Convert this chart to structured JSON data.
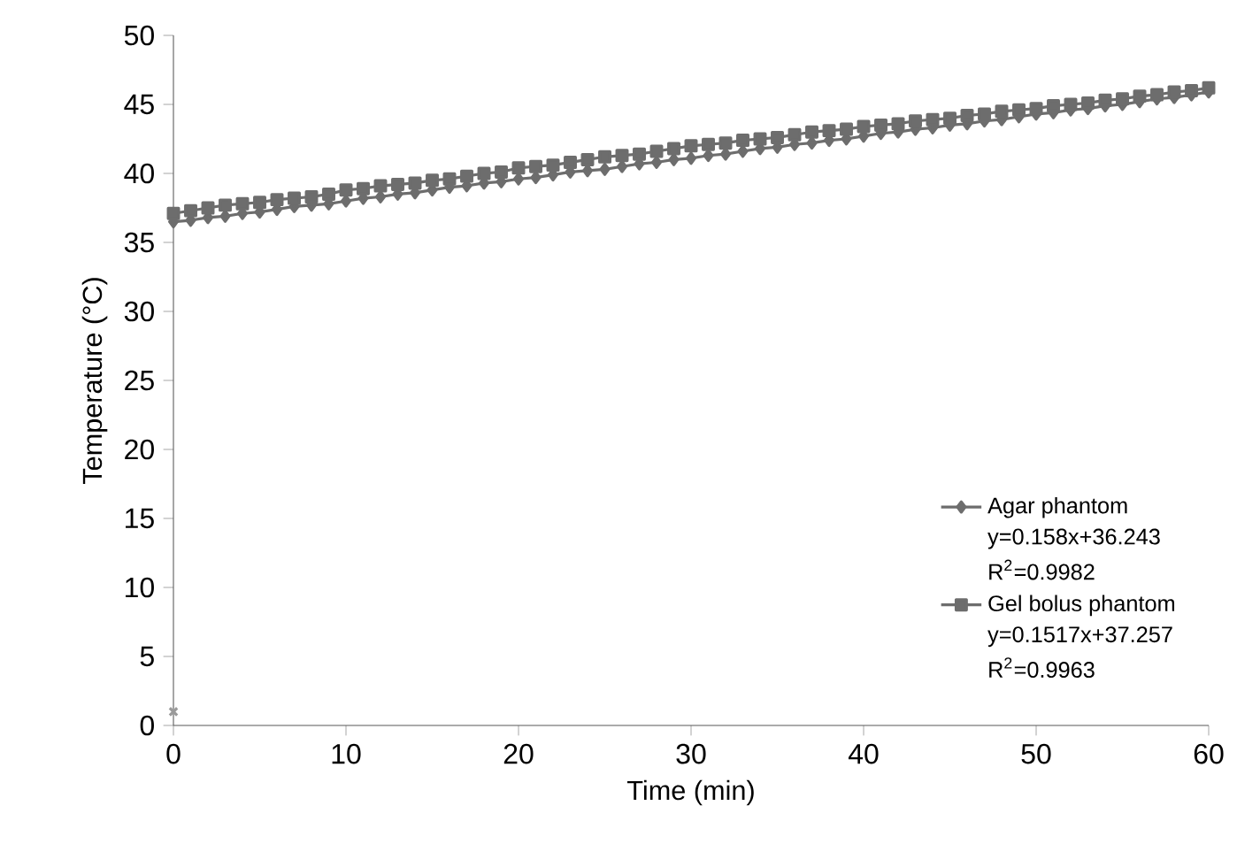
{
  "chart_data": {
    "type": "line",
    "xlabel": "Time (min)",
    "ylabel": "Temperature (°C)",
    "xlim": [
      0,
      60
    ],
    "xticks": [
      0,
      10,
      20,
      30,
      40,
      50,
      60
    ],
    "ylim": [
      0,
      50
    ],
    "yticks": [
      0,
      5,
      10,
      15,
      20,
      25,
      30,
      35,
      40,
      45,
      50
    ],
    "x": [
      0,
      1,
      2,
      3,
      4,
      5,
      6,
      7,
      8,
      9,
      10,
      11,
      12,
      13,
      14,
      15,
      16,
      17,
      18,
      19,
      20,
      21,
      22,
      23,
      24,
      25,
      26,
      27,
      28,
      29,
      30,
      31,
      32,
      33,
      34,
      35,
      36,
      37,
      38,
      39,
      40,
      41,
      42,
      43,
      44,
      45,
      46,
      47,
      48,
      49,
      50,
      51,
      52,
      53,
      54,
      55,
      56,
      57,
      58,
      59,
      60
    ],
    "series": [
      {
        "name": "Agar phantom",
        "color": "#6d6d6d",
        "marker": "diamond",
        "values": [
          36.5,
          36.6,
          36.8,
          36.9,
          37.1,
          37.2,
          37.4,
          37.6,
          37.7,
          37.8,
          38.0,
          38.2,
          38.3,
          38.5,
          38.6,
          38.8,
          39.0,
          39.1,
          39.3,
          39.4,
          39.6,
          39.7,
          39.9,
          40.1,
          40.2,
          40.3,
          40.5,
          40.7,
          40.8,
          41.0,
          41.1,
          41.3,
          41.4,
          41.6,
          41.8,
          41.9,
          42.1,
          42.2,
          42.4,
          42.5,
          42.7,
          42.9,
          43.0,
          43.2,
          43.3,
          43.5,
          43.6,
          43.8,
          43.9,
          44.1,
          44.3,
          44.4,
          44.6,
          44.7,
          44.9,
          45.0,
          45.2,
          45.4,
          45.5,
          45.7,
          45.9
        ]
      },
      {
        "name": "Gel bolus phantom",
        "color": "#6d6d6d",
        "marker": "square",
        "values": [
          37.1,
          37.3,
          37.5,
          37.7,
          37.8,
          37.9,
          38.1,
          38.2,
          38.3,
          38.5,
          38.8,
          38.9,
          39.1,
          39.2,
          39.3,
          39.5,
          39.6,
          39.8,
          40.0,
          40.1,
          40.4,
          40.5,
          40.6,
          40.8,
          41.0,
          41.2,
          41.3,
          41.4,
          41.6,
          41.8,
          42.0,
          42.1,
          42.2,
          42.4,
          42.5,
          42.6,
          42.8,
          43.0,
          43.1,
          43.2,
          43.4,
          43.5,
          43.6,
          43.8,
          43.9,
          44.0,
          44.2,
          44.3,
          44.5,
          44.6,
          44.7,
          44.9,
          45.0,
          45.1,
          45.3,
          45.4,
          45.6,
          45.7,
          45.9,
          46.0,
          46.2
        ]
      },
      {
        "type": "scatter",
        "color": "#9a9a9a",
        "marker": "cross",
        "x": [
          0
        ],
        "values": [
          1
        ]
      }
    ],
    "annotations": [
      "y=0.158x+36.243",
      "R$^{2}$=0.9982",
      "y=0.1517x+37.257",
      "R$^{2}$=0.9963"
    ],
    "legend": "bottom right",
    "grid": false
  }
}
